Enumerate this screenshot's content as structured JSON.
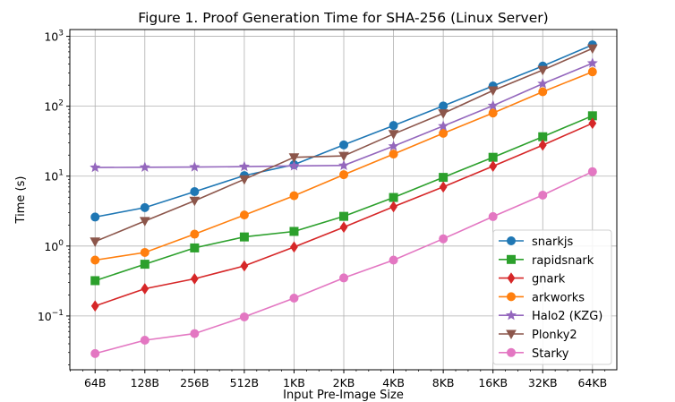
{
  "chart_data": {
    "type": "line",
    "title": "Figure 1. Proof Generation Time for SHA-256 (Linux Server)",
    "xlabel": "Input Pre-Image Size",
    "ylabel": "Time (s)",
    "x_scale": "log2",
    "y_scale": "log10",
    "categories": [
      "64B",
      "128B",
      "256B",
      "512B",
      "1KB",
      "2KB",
      "4KB",
      "8KB",
      "16KB",
      "32KB",
      "64KB"
    ],
    "x": [
      64,
      128,
      256,
      512,
      1024,
      2048,
      4096,
      8192,
      16384,
      32768,
      65536
    ],
    "xlim": [
      45,
      92000
    ],
    "ylim": [
      0.017,
      1250
    ],
    "yticks": [
      {
        "value": 0.1,
        "base": "10",
        "exp": "−1"
      },
      {
        "value": 1,
        "base": "10",
        "exp": "0"
      },
      {
        "value": 10,
        "base": "10",
        "exp": "1"
      },
      {
        "value": 100,
        "base": "10",
        "exp": "2"
      },
      {
        "value": 1000,
        "base": "10",
        "exp": "3"
      }
    ],
    "grid": true,
    "legend_position": "lower-right",
    "series": [
      {
        "name": "snarkjs",
        "color": "#1f77b4",
        "marker": "circle",
        "values": [
          2.6,
          3.55,
          6.0,
          10.2,
          14.6,
          28,
          53,
          101,
          195,
          376,
          755
        ]
      },
      {
        "name": "rapidsnark",
        "color": "#2ca02c",
        "marker": "square",
        "values": [
          0.32,
          0.55,
          0.94,
          1.35,
          1.62,
          2.66,
          4.95,
          9.6,
          18.6,
          36.6,
          73
        ]
      },
      {
        "name": "gnark",
        "color": "#d62728",
        "marker": "diamond",
        "values": [
          0.139,
          0.245,
          0.34,
          0.52,
          0.97,
          1.86,
          3.65,
          7.0,
          13.9,
          27.8,
          57
        ]
      },
      {
        "name": "arkworks",
        "color": "#ff7f0e",
        "marker": "circle",
        "values": [
          0.63,
          0.81,
          1.48,
          2.78,
          5.25,
          10.5,
          20.7,
          41,
          80,
          161,
          311
        ]
      },
      {
        "name": "Halo2 (KZG)",
        "color": "#9467bd",
        "marker": "star",
        "values": [
          13.3,
          13.4,
          13.5,
          13.7,
          14.0,
          14.2,
          26.8,
          52,
          102,
          210,
          413
        ]
      },
      {
        "name": "Plonky2",
        "color": "#8c564b",
        "marker": "triangle-down",
        "values": [
          1.16,
          2.28,
          4.45,
          9.0,
          18.6,
          19.5,
          40,
          79,
          168,
          330,
          670
        ]
      },
      {
        "name": "Starky",
        "color": "#e377c2",
        "marker": "circle",
        "values": [
          0.029,
          0.045,
          0.056,
          0.097,
          0.18,
          0.35,
          0.63,
          1.27,
          2.64,
          5.35,
          11.6
        ]
      }
    ]
  }
}
